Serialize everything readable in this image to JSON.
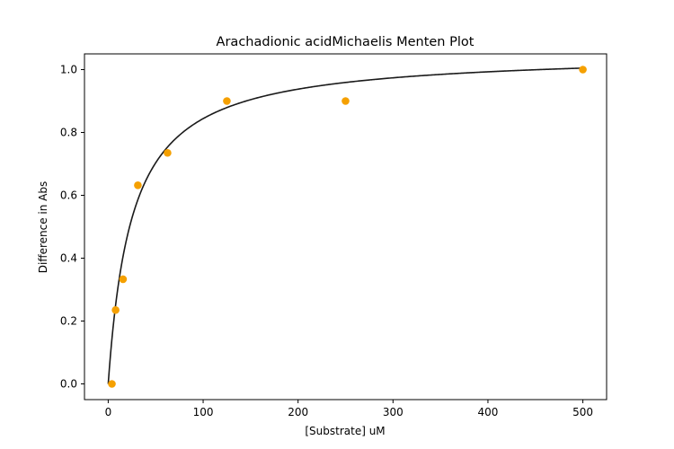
{
  "chart_data": {
    "type": "scatter",
    "title": "Arachadionic acidMichaelis Menten Plot",
    "xlabel": "[Substrate] uM",
    "ylabel": "Difference in Abs",
    "xlim": [
      -25,
      525
    ],
    "ylim": [
      -0.05,
      1.05
    ],
    "xticks": [
      0,
      100,
      200,
      300,
      400,
      500
    ],
    "yticks": [
      0.0,
      0.2,
      0.4,
      0.6,
      0.8,
      1.0
    ],
    "xtick_labels": [
      "0",
      "100",
      "200",
      "300",
      "400",
      "500"
    ],
    "ytick_labels": [
      "0.0",
      "0.2",
      "0.4",
      "0.6",
      "0.8",
      "1.0"
    ],
    "grid": false,
    "series": [
      {
        "kind": "scatter",
        "color": "#f5a000",
        "points": [
          {
            "x": 3.9,
            "y": 0.0
          },
          {
            "x": 7.8,
            "y": 0.235
          },
          {
            "x": 15.6,
            "y": 0.333
          },
          {
            "x": 31.25,
            "y": 0.632
          },
          {
            "x": 62.5,
            "y": 0.735
          },
          {
            "x": 125,
            "y": 0.9
          },
          {
            "x": 250,
            "y": 0.9
          },
          {
            "x": 500,
            "y": 1.0
          }
        ]
      },
      {
        "kind": "line",
        "color": "#1a1a1a",
        "model": "michaelis-menten",
        "vmax": 1.055,
        "km": 25,
        "x_range": [
          0,
          500
        ]
      }
    ]
  }
}
